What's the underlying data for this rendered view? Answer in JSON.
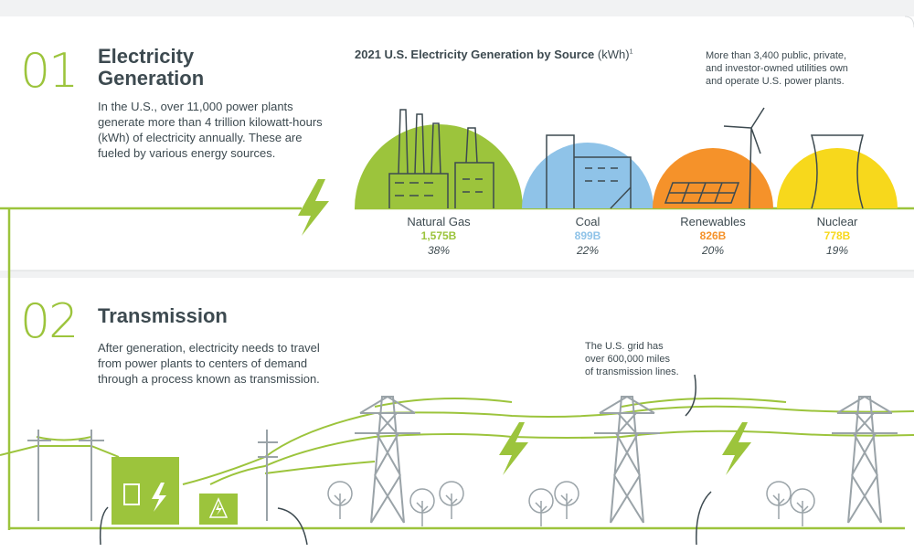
{
  "section1": {
    "number": "01",
    "heading_line1": "Electricity",
    "heading_line2": "Generation",
    "paragraph_lines": [
      "In the U.S., over 11,000 power plants",
      "generate more than 4 trillion kilowatt-hours",
      "(kWh) of electricity annually. These are",
      "fueled by various energy sources."
    ],
    "chart_title": "2021 U.S. Electricity Generation by Source",
    "chart_unit": "(kWh)",
    "chart_footnote": "1",
    "note_lines": [
      "More than 3,400 public, private,",
      "and investor-owned utilities own",
      "and operate U.S. power plants."
    ]
  },
  "colors": {
    "green": "#9cc43c",
    "blue": "#8fc3e8",
    "orange": "#f5922a",
    "yellow": "#f7d81c",
    "dark": "#3d4a50"
  },
  "chart_data": {
    "type": "bar",
    "title": "2021 U.S. Electricity Generation by Source (kWh)",
    "categories": [
      "Natural Gas",
      "Coal",
      "Renewables",
      "Nuclear"
    ],
    "value_labels": [
      "1,575B",
      "899B",
      "826B",
      "778B"
    ],
    "values": [
      1575,
      899,
      826,
      778
    ],
    "percent_labels": [
      "38%",
      "22%",
      "20%",
      "19%"
    ],
    "percents": [
      38,
      22,
      20,
      19
    ],
    "colors": [
      "#9cc43c",
      "#8fc3e8",
      "#f5922a",
      "#f7d81c"
    ],
    "icons": [
      "gas-plant-icon",
      "coal-plant-icon",
      "solar-wind-icon",
      "nuclear-cooling-tower-icon"
    ]
  },
  "section2": {
    "number": "02",
    "heading": "Transmission",
    "paragraph_lines": [
      "After generation, electricity needs to travel",
      "from power plants to centers of demand",
      "through a process known as transmission."
    ],
    "note_lines": [
      "The U.S. grid has",
      "over 600,000 miles",
      "of transmission lines."
    ]
  }
}
